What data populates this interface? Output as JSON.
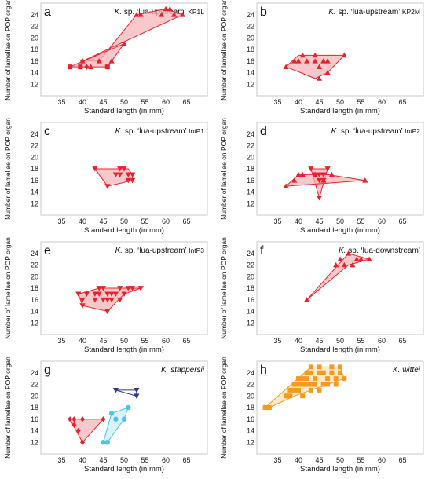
{
  "figure": {
    "xlabel": "Standard length (in mm)",
    "ylabel": "Number of lamellae on POP organ",
    "xticks": [
      35,
      40,
      45,
      50,
      55,
      60,
      65
    ],
    "yticks": [
      12,
      14,
      16,
      18,
      20,
      22,
      24
    ]
  },
  "colors": {
    "red": "#e8222d",
    "red_fill": "#f6b6b8",
    "blue": "#2b3a8f",
    "cyan": "#4fc3e6",
    "cyan_fill": "#cdeef9",
    "orange": "#f39a1f",
    "orange_fill": "#fde2b8"
  },
  "panels": [
    {
      "letter": "a",
      "genus": "K.",
      "name": "sp. ‘lua-upstream’",
      "code": "KP1L"
    },
    {
      "letter": "b",
      "genus": "K.",
      "name": "sp. ‘lua-upstream’",
      "code": "KP2M"
    },
    {
      "letter": "c",
      "genus": "K.",
      "name": "sp. ‘lua-upstream’",
      "code": "IntP1"
    },
    {
      "letter": "d",
      "genus": "K.",
      "name": "sp. ‘lua-upstream’",
      "code": "IntP2"
    },
    {
      "letter": "e",
      "genus": "K.",
      "name": "sp. ‘lua-upstream’",
      "code": "IntP3"
    },
    {
      "letter": "f",
      "genus": "K.",
      "name": "sp. ‘lua-downstream’",
      "code": ""
    },
    {
      "letter": "g",
      "genus": "K. stappersii",
      "name": "",
      "code": ""
    },
    {
      "letter": "h",
      "genus": "K. wittei",
      "name": "",
      "code": ""
    }
  ],
  "chart_data": [
    {
      "type": "scatter",
      "panel": "a",
      "xlim": [
        30,
        70
      ],
      "ylim": [
        10,
        26
      ],
      "series": [
        {
          "marker": "triangle-up",
          "color": "red",
          "hull": [
            [
              40,
              16
            ],
            [
              44,
              16
            ],
            [
              53,
              24
            ],
            [
              60,
              25
            ],
            [
              64,
              24
            ]
          ],
          "points": [
            [
              40,
              16
            ],
            [
              42,
              15
            ],
            [
              44,
              16
            ],
            [
              47,
              16
            ],
            [
              50,
              19
            ],
            [
              53,
              24
            ],
            [
              54,
              24
            ],
            [
              59,
              24
            ],
            [
              60,
              25
            ],
            [
              61,
              25
            ],
            [
              62,
              24
            ],
            [
              64,
              24
            ]
          ]
        },
        {
          "marker": "square",
          "color": "red",
          "hull": [
            [
              37,
              15
            ],
            [
              46,
              15
            ],
            [
              50,
              19
            ]
          ],
          "points": [
            [
              37,
              15
            ],
            [
              39.5,
              15
            ],
            [
              46,
              15
            ]
          ]
        },
        {
          "marker": "diamond",
          "color": "red",
          "hull": [],
          "points": [
            [
              40,
              16
            ],
            [
              41,
              15
            ]
          ]
        }
      ]
    },
    {
      "type": "scatter",
      "panel": "b",
      "xlim": [
        30,
        70
      ],
      "ylim": [
        10,
        26
      ],
      "series": [
        {
          "marker": "triangle-up",
          "color": "red",
          "hull": [
            [
              37,
              15
            ],
            [
              40,
              17
            ],
            [
              51,
              17
            ],
            [
              47,
              14
            ],
            [
              44,
              13
            ]
          ],
          "points": [
            [
              37,
              15
            ],
            [
              39,
              16
            ],
            [
              40,
              16
            ],
            [
              41,
              17
            ],
            [
              42,
              16
            ],
            [
              44,
              17
            ],
            [
              44,
              16
            ],
            [
              45,
              15
            ],
            [
              45,
              13
            ],
            [
              46,
              16
            ],
            [
              47,
              16
            ],
            [
              47,
              14
            ],
            [
              51,
              17
            ]
          ]
        }
      ]
    },
    {
      "type": "scatter",
      "panel": "c",
      "xlim": [
        30,
        70
      ],
      "ylim": [
        10,
        26
      ],
      "series": [
        {
          "marker": "triangle-down",
          "color": "red",
          "hull": [
            [
              43,
              18
            ],
            [
              51,
              18
            ],
            [
              52,
              17
            ],
            [
              52,
              16
            ],
            [
              46,
              15
            ]
          ],
          "points": [
            [
              43,
              18
            ],
            [
              46,
              15
            ],
            [
              48,
              17
            ],
            [
              49,
              17
            ],
            [
              49,
              18
            ],
            [
              50,
              18
            ],
            [
              51,
              17
            ],
            [
              52,
              17
            ],
            [
              52,
              16
            ],
            [
              51,
              16
            ]
          ]
        }
      ]
    },
    {
      "type": "scatter",
      "panel": "d",
      "xlim": [
        30,
        70
      ],
      "ylim": [
        10,
        26
      ],
      "series": [
        {
          "marker": "triangle-down",
          "color": "red",
          "hull": [
            [
              43,
              18
            ],
            [
              47,
              18
            ],
            [
              45,
              13
            ]
          ],
          "points": [
            [
              43,
              18
            ],
            [
              44,
              17
            ],
            [
              45,
              16
            ],
            [
              45,
              17
            ],
            [
              46,
              16
            ],
            [
              46,
              17
            ],
            [
              47,
              18
            ],
            [
              45,
              13
            ]
          ]
        },
        {
          "marker": "triangle-up",
          "color": "red",
          "hull": [
            [
              37,
              15
            ],
            [
              40,
              17
            ],
            [
              47,
              17
            ],
            [
              56,
              16
            ]
          ],
          "points": [
            [
              37,
              15
            ],
            [
              39,
              16
            ],
            [
              40,
              17
            ],
            [
              41,
              17
            ],
            [
              44,
              17
            ],
            [
              46,
              16
            ],
            [
              48,
              17
            ],
            [
              56,
              16
            ]
          ]
        }
      ]
    },
    {
      "type": "scatter",
      "panel": "e",
      "xlim": [
        30,
        70
      ],
      "ylim": [
        10,
        26
      ],
      "series": [
        {
          "marker": "triangle-down",
          "color": "red",
          "hull": [
            [
              39,
              17
            ],
            [
              40,
              15
            ],
            [
              46,
              14
            ],
            [
              50,
              17
            ],
            [
              54,
              18
            ],
            [
              44,
              18
            ]
          ],
          "points": [
            [
              39,
              17
            ],
            [
              40,
              16
            ],
            [
              40,
              15
            ],
            [
              41,
              17
            ],
            [
              43,
              17
            ],
            [
              43,
              16
            ],
            [
              44,
              18
            ],
            [
              44,
              17
            ],
            [
              45,
              16
            ],
            [
              45,
              18
            ],
            [
              46,
              17
            ],
            [
              46,
              16
            ],
            [
              46,
              14
            ],
            [
              47,
              17
            ],
            [
              47,
              16
            ],
            [
              48,
              17
            ],
            [
              49,
              18
            ],
            [
              49,
              16
            ],
            [
              50,
              17
            ],
            [
              51,
              18
            ],
            [
              52,
              18
            ],
            [
              54,
              18
            ]
          ]
        }
      ]
    },
    {
      "type": "scatter",
      "panel": "f",
      "xlim": [
        30,
        70
      ],
      "ylim": [
        10,
        26
      ],
      "series": [
        {
          "marker": "triangle-up",
          "color": "red",
          "hull": [
            [
              42,
              16
            ],
            [
              52,
              24
            ],
            [
              57,
              23
            ],
            [
              52,
              22
            ]
          ],
          "points": [
            [
              42,
              16
            ],
            [
              49,
              22
            ],
            [
              50,
              23
            ],
            [
              51,
              22
            ],
            [
              52,
              24
            ],
            [
              53,
              22
            ],
            [
              54,
              23
            ],
            [
              55,
              23
            ],
            [
              57,
              23
            ]
          ]
        }
      ]
    },
    {
      "type": "scatter",
      "panel": "g",
      "xlim": [
        30,
        70
      ],
      "ylim": [
        10,
        26
      ],
      "series": [
        {
          "marker": "diamond",
          "color": "red",
          "fill": "red_fill",
          "hull": [
            [
              37,
              16
            ],
            [
              45,
              16
            ],
            [
              40,
              12
            ]
          ],
          "points": [
            [
              37,
              16
            ],
            [
              38,
              16
            ],
            [
              38,
              15
            ],
            [
              39,
              14
            ],
            [
              40,
              16
            ],
            [
              40,
              12
            ],
            [
              45,
              16
            ]
          ]
        },
        {
          "marker": "triangle-down",
          "color": "blue",
          "fill": "none",
          "hull": [
            [
              48,
              21
            ],
            [
              53,
              21
            ],
            [
              53,
              20
            ]
          ],
          "points": [
            [
              48,
              21
            ],
            [
              53,
              21
            ],
            [
              53,
              20
            ]
          ]
        },
        {
          "marker": "circle",
          "color": "cyan",
          "fill": "cyan_fill",
          "hull": [
            [
              45,
              12
            ],
            [
              47,
              17
            ],
            [
              51,
              18
            ],
            [
              50,
              16
            ],
            [
              46,
              12
            ]
          ],
          "points": [
            [
              45,
              12
            ],
            [
              46,
              12
            ],
            [
              47,
              17
            ],
            [
              48,
              16
            ],
            [
              50,
              16
            ],
            [
              51,
              18
            ]
          ]
        }
      ]
    },
    {
      "type": "scatter",
      "panel": "h",
      "xlim": [
        30,
        70
      ],
      "ylim": [
        10,
        26
      ],
      "series": [
        {
          "marker": "square",
          "color": "orange",
          "fill": "orange_fill",
          "hull": [
            [
              32,
              18
            ],
            [
              43,
              25
            ],
            [
              50,
              25
            ],
            [
              51,
              23
            ],
            [
              39,
              20
            ],
            [
              33,
              18
            ]
          ],
          "points": [
            [
              32,
              18
            ],
            [
              33,
              18
            ],
            [
              37,
              20
            ],
            [
              38,
              21
            ],
            [
              38,
              20
            ],
            [
              39,
              22
            ],
            [
              39,
              21
            ],
            [
              40,
              23
            ],
            [
              40,
              22
            ],
            [
              40,
              21
            ],
            [
              41,
              23
            ],
            [
              41,
              22
            ],
            [
              41,
              20
            ],
            [
              42,
              24
            ],
            [
              42,
              23
            ],
            [
              42,
              22
            ],
            [
              43,
              25
            ],
            [
              43,
              24
            ],
            [
              43,
              22
            ],
            [
              43,
              21
            ],
            [
              44,
              23
            ],
            [
              44,
              22
            ],
            [
              45,
              25
            ],
            [
              45,
              24
            ],
            [
              45,
              21
            ],
            [
              46,
              24
            ],
            [
              46,
              22
            ],
            [
              47,
              23
            ],
            [
              47,
              22
            ],
            [
              48,
              25
            ],
            [
              48,
              24
            ],
            [
              49,
              23
            ],
            [
              49,
              22
            ],
            [
              50,
              25
            ],
            [
              50,
              24
            ],
            [
              51,
              23
            ]
          ]
        }
      ]
    }
  ]
}
